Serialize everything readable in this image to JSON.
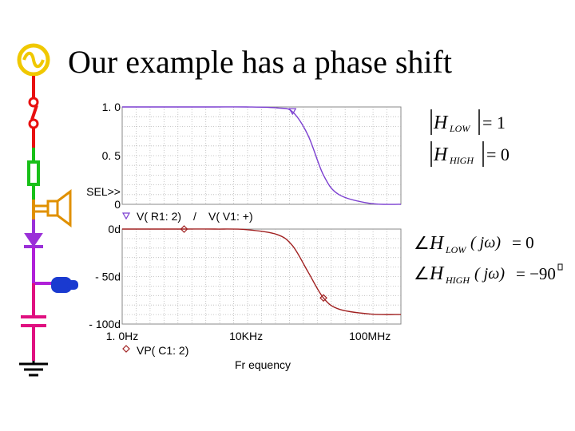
{
  "slide": {
    "title": "Our example has a phase shift"
  },
  "chart_data": [
    {
      "type": "line",
      "panel": "top",
      "xscale": "log",
      "xlim": [
        1,
        1000000000
      ],
      "ylim": [
        0,
        1.0
      ],
      "grid": true,
      "yticks": [
        "1. 0",
        "0. 5",
        "0"
      ],
      "sel_label": "SEL>>",
      "legend": [
        "V( R1: 2)",
        "/",
        "V( V1: +)"
      ],
      "series": [
        {
          "color": "#7b3fd0",
          "x": [
            1,
            10,
            100,
            1000,
            10000,
            100000,
            316228,
            1000000,
            3162278,
            10000000,
            100000000,
            1000000000
          ],
          "values": [
            1.0,
            1.0,
            1.0,
            1.0,
            1.0,
            0.99,
            0.95,
            0.71,
            0.3,
            0.1,
            0.01,
            0.0
          ]
        }
      ]
    },
    {
      "type": "line",
      "panel": "bottom",
      "xscale": "log",
      "xlim": [
        1,
        1000000000
      ],
      "ylim": [
        -100,
        0
      ],
      "grid": true,
      "yticks": [
        "0d",
        "- 50d",
        "- 100d"
      ],
      "xticks": [
        "1. 0Hz",
        "10KHz",
        "100MHz"
      ],
      "xlabel": "Fr equency",
      "legend": [
        "VP( C1: 2)"
      ],
      "series": [
        {
          "color": "#a02020",
          "x": [
            1,
            10,
            100,
            1000,
            10000,
            100000,
            316228,
            1000000,
            3162278,
            10000000,
            100000000,
            1000000000
          ],
          "values": [
            0,
            0,
            0,
            0,
            -0.6,
            -5.7,
            -17.5,
            -45,
            -72.5,
            -84.3,
            -89.4,
            -90
          ]
        }
      ]
    }
  ],
  "equations": [
    {
      "H": "H",
      "sub": "LOW",
      "value": "= 1"
    },
    {
      "H": "H",
      "sub": "HIGH",
      "value": "= 0"
    },
    {
      "angle": "∠",
      "H": "H",
      "sub": "LOW",
      "arg": "( jω)",
      "value": "= 0"
    },
    {
      "angle": "∠",
      "H": "H",
      "sub": "HIGH",
      "arg": "( jω)",
      "value": "= −90"
    }
  ]
}
